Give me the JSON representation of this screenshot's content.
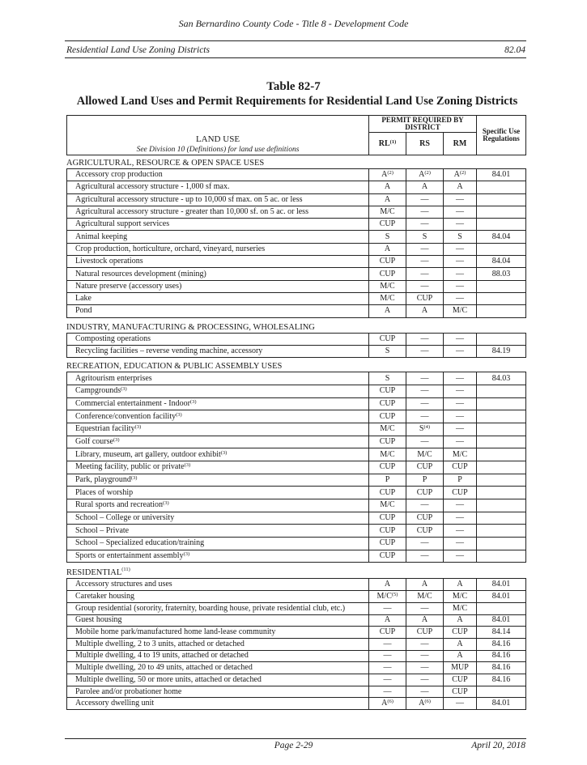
{
  "running_head": "San Bernardino County Code - Title 8 - Development Code",
  "subheader": {
    "left": "Residential Land Use Zoning Districts",
    "right": "82.04"
  },
  "table_number": "Table 82-7",
  "table_title": "Allowed Land Uses and Permit Requirements for Residential Land Use Zoning Districts",
  "header": {
    "land_use": "LAND USE",
    "land_use_note": "See Division 10 (Definitions) for land use definitions",
    "permit_required": "PERMIT REQUIRED BY DISTRICT",
    "districts": [
      {
        "text": "RL",
        "sup": "(1)"
      },
      {
        "text": "RS"
      },
      {
        "text": "RM"
      }
    ],
    "specific": "Specific Use Regulations"
  },
  "sections": [
    {
      "title": "AGRICULTURAL, RESOURCE & OPEN SPACE USES",
      "rows": [
        {
          "use": {
            "text": "Accessory crop production"
          },
          "cells": [
            {
              "text": "A",
              "sup": "(2)"
            },
            {
              "text": "A",
              "sup": "(2)"
            },
            {
              "text": "A",
              "sup": "(2)"
            }
          ],
          "reg": "84.01"
        },
        {
          "use": {
            "text": "Agricultural accessory structure - 1,000 sf max."
          },
          "cells": [
            {
              "text": "A"
            },
            {
              "text": "A"
            },
            {
              "text": "A"
            }
          ],
          "reg": ""
        },
        {
          "use": {
            "text": "Agricultural accessory structure - up to 10,000 sf max. on 5 ac. or less"
          },
          "cells": [
            {
              "text": "A"
            },
            {
              "text": "—"
            },
            {
              "text": "—"
            }
          ],
          "reg": ""
        },
        {
          "use": {
            "text": "Agricultural accessory structure - greater than 10,000 sf. on 5 ac. or less"
          },
          "cells": [
            {
              "text": "M/C"
            },
            {
              "text": "—"
            },
            {
              "text": "—"
            }
          ],
          "reg": ""
        },
        {
          "use": {
            "text": "Agricultural support services"
          },
          "cells": [
            {
              "text": "CUP"
            },
            {
              "text": "—"
            },
            {
              "text": "—"
            }
          ],
          "reg": ""
        },
        {
          "use": {
            "text": "Animal keeping"
          },
          "cells": [
            {
              "text": "S"
            },
            {
              "text": "S"
            },
            {
              "text": "S"
            }
          ],
          "reg": "84.04"
        },
        {
          "use": {
            "text": "Crop production, horticulture, orchard, vineyard, nurseries"
          },
          "cells": [
            {
              "text": "A"
            },
            {
              "text": "—"
            },
            {
              "text": "—"
            }
          ],
          "reg": ""
        },
        {
          "use": {
            "text": "Livestock operations"
          },
          "cells": [
            {
              "text": "CUP"
            },
            {
              "text": "—"
            },
            {
              "text": "—"
            }
          ],
          "reg": "84.04"
        },
        {
          "use": {
            "text": "Natural resources development (mining)"
          },
          "cells": [
            {
              "text": "CUP"
            },
            {
              "text": "—"
            },
            {
              "text": "—"
            }
          ],
          "reg": "88.03"
        },
        {
          "use": {
            "text": "Nature preserve (accessory uses)"
          },
          "cells": [
            {
              "text": "M/C"
            },
            {
              "text": "—"
            },
            {
              "text": "—"
            }
          ],
          "reg": ""
        },
        {
          "use": {
            "text": "Lake"
          },
          "cells": [
            {
              "text": "M/C"
            },
            {
              "text": "CUP"
            },
            {
              "text": "—"
            }
          ],
          "reg": ""
        },
        {
          "use": {
            "text": "Pond"
          },
          "cells": [
            {
              "text": "A"
            },
            {
              "text": "A"
            },
            {
              "text": "M/C"
            }
          ],
          "reg": ""
        }
      ]
    },
    {
      "title": "INDUSTRY, MANUFACTURING & PROCESSING, WHOLESALING",
      "rows": [
        {
          "use": {
            "text": "Composting operations"
          },
          "cells": [
            {
              "text": "CUP"
            },
            {
              "text": "—"
            },
            {
              "text": "—"
            }
          ],
          "reg": ""
        },
        {
          "use": {
            "text": "Recycling facilities – reverse vending machine, accessory"
          },
          "cells": [
            {
              "text": "S"
            },
            {
              "text": "—"
            },
            {
              "text": "—"
            }
          ],
          "reg": "84.19"
        }
      ]
    },
    {
      "title": "RECREATION, EDUCATION & PUBLIC ASSEMBLY USES",
      "rows": [
        {
          "use": {
            "text": "Agritourism enterprises"
          },
          "cells": [
            {
              "text": "S"
            },
            {
              "text": "—"
            },
            {
              "text": "—"
            }
          ],
          "reg": "84.03"
        },
        {
          "use": {
            "text": "Campgrounds",
            "sup": "(3)"
          },
          "cells": [
            {
              "text": "CUP"
            },
            {
              "text": "—"
            },
            {
              "text": "—"
            }
          ],
          "reg": ""
        },
        {
          "use": {
            "text": "Commercial entertainment - Indoor",
            "sup": "(3)"
          },
          "cells": [
            {
              "text": "CUP"
            },
            {
              "text": "—"
            },
            {
              "text": "—"
            }
          ],
          "reg": ""
        },
        {
          "use": {
            "text": "Conference/convention facility",
            "sup": "(3)"
          },
          "cells": [
            {
              "text": "CUP"
            },
            {
              "text": "—"
            },
            {
              "text": "—"
            }
          ],
          "reg": ""
        },
        {
          "use": {
            "text": "Equestrian facility",
            "sup": "(3)"
          },
          "cells": [
            {
              "text": "M/C"
            },
            {
              "text": "S",
              "sup": "(4)"
            },
            {
              "text": "—"
            }
          ],
          "reg": ""
        },
        {
          "use": {
            "text": "Golf course",
            "sup": "(3)"
          },
          "cells": [
            {
              "text": "CUP"
            },
            {
              "text": "—"
            },
            {
              "text": "—"
            }
          ],
          "reg": ""
        },
        {
          "use": {
            "text": "Library, museum, art gallery, outdoor exhibit",
            "sup": "(3)"
          },
          "cells": [
            {
              "text": "M/C"
            },
            {
              "text": "M/C"
            },
            {
              "text": "M/C"
            }
          ],
          "reg": ""
        },
        {
          "use": {
            "text": "Meeting facility, public or private",
            "sup": "(3)"
          },
          "cells": [
            {
              "text": "CUP"
            },
            {
              "text": "CUP"
            },
            {
              "text": "CUP"
            }
          ],
          "reg": ""
        },
        {
          "use": {
            "text": "Park, playground",
            "sup": "(3)"
          },
          "cells": [
            {
              "text": "P"
            },
            {
              "text": "P"
            },
            {
              "text": "P"
            }
          ],
          "reg": ""
        },
        {
          "use": {
            "text": "Places of worship"
          },
          "cells": [
            {
              "text": "CUP"
            },
            {
              "text": "CUP"
            },
            {
              "text": "CUP"
            }
          ],
          "reg": ""
        },
        {
          "use": {
            "text": "Rural sports and recreation",
            "sup": "(3)"
          },
          "cells": [
            {
              "text": "M/C"
            },
            {
              "text": "—"
            },
            {
              "text": "—"
            }
          ],
          "reg": ""
        },
        {
          "use": {
            "text": "School – College or university"
          },
          "cells": [
            {
              "text": "CUP"
            },
            {
              "text": "CUP"
            },
            {
              "text": "—"
            }
          ],
          "reg": ""
        },
        {
          "use": {
            "text": "School – Private"
          },
          "cells": [
            {
              "text": "CUP"
            },
            {
              "text": "CUP"
            },
            {
              "text": "—"
            }
          ],
          "reg": ""
        },
        {
          "use": {
            "text": "School – Specialized education/training"
          },
          "cells": [
            {
              "text": "CUP"
            },
            {
              "text": "—"
            },
            {
              "text": "—"
            }
          ],
          "reg": ""
        },
        {
          "use": {
            "text": "Sports or entertainment assembly",
            "sup": "(3)"
          },
          "cells": [
            {
              "text": "CUP"
            },
            {
              "text": "—"
            },
            {
              "text": "—"
            }
          ],
          "reg": ""
        }
      ]
    },
    {
      "title": "RESIDENTIAL",
      "title_sup": "(11)",
      "rows": [
        {
          "use": {
            "text": "Accessory structures and uses"
          },
          "cells": [
            {
              "text": "A"
            },
            {
              "text": "A"
            },
            {
              "text": "A"
            }
          ],
          "reg": "84.01"
        },
        {
          "use": {
            "text": "Caretaker housing"
          },
          "cells": [
            {
              "text": "M/C",
              "sup": "(5)"
            },
            {
              "text": "M/C"
            },
            {
              "text": "M/C"
            }
          ],
          "reg": "84.01"
        },
        {
          "use": {
            "text": "Group residential (sorority, fraternity, boarding house, private residential club, etc.)"
          },
          "cells": [
            {
              "text": "—"
            },
            {
              "text": "—"
            },
            {
              "text": "M/C"
            }
          ],
          "reg": ""
        },
        {
          "use": {
            "text": "Guest housing"
          },
          "cells": [
            {
              "text": "A"
            },
            {
              "text": "A"
            },
            {
              "text": "A"
            }
          ],
          "reg": "84.01"
        },
        {
          "use": {
            "text": "Mobile home park/manufactured home land-lease community"
          },
          "cells": [
            {
              "text": "CUP"
            },
            {
              "text": "CUP"
            },
            {
              "text": "CUP"
            }
          ],
          "reg": "84.14"
        },
        {
          "use": {
            "text": "Multiple dwelling, 2 to 3 units, attached or detached"
          },
          "cells": [
            {
              "text": "—"
            },
            {
              "text": "—"
            },
            {
              "text": "A"
            }
          ],
          "reg": "84.16"
        },
        {
          "use": {
            "text": "Multiple dwelling, 4 to 19 units, attached or detached"
          },
          "cells": [
            {
              "text": "—"
            },
            {
              "text": "—"
            },
            {
              "text": "A"
            }
          ],
          "reg": "84.16"
        },
        {
          "use": {
            "text": "Multiple dwelling, 20 to 49 units, attached or detached"
          },
          "cells": [
            {
              "text": "—"
            },
            {
              "text": "—"
            },
            {
              "text": "MUP"
            }
          ],
          "reg": "84.16"
        },
        {
          "use": {
            "text": "Multiple dwelling, 50 or more units, attached or detached"
          },
          "cells": [
            {
              "text": "—"
            },
            {
              "text": "—"
            },
            {
              "text": "CUP"
            }
          ],
          "reg": "84.16"
        },
        {
          "use": {
            "text": "Parolee and/or probationer home"
          },
          "cells": [
            {
              "text": "—"
            },
            {
              "text": "—"
            },
            {
              "text": "CUP"
            }
          ],
          "reg": ""
        },
        {
          "use": {
            "text": "Accessory dwelling unit"
          },
          "cells": [
            {
              "text": "A",
              "sup": "(6)"
            },
            {
              "text": "A",
              "sup": "(6)"
            },
            {
              "text": "—"
            }
          ],
          "reg": "84.01"
        }
      ]
    }
  ],
  "footer": {
    "page": "Page 2-29",
    "date": "April 20, 2018"
  }
}
